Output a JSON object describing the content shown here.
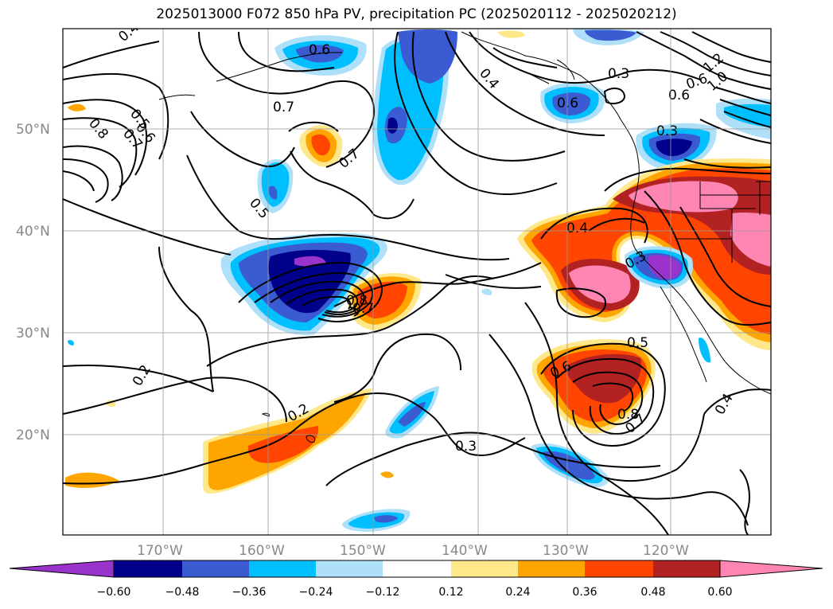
{
  "title": "2025013000 F072 850 hPa PV, precipitation PC (2025020112 - 2025020212)",
  "map": {
    "lat_labels": [
      "50°N",
      "40°N",
      "30°N",
      "20°N"
    ],
    "lon_labels": [
      "170°W",
      "160°W",
      "150°W",
      "140°W",
      "130°W",
      "120°W"
    ],
    "contour_labels": [
      "0.4",
      "0.6",
      "0.5",
      "0.6",
      "0.8",
      "0.7",
      "0.7",
      "0.7",
      "0.5",
      "0.4",
      "0.3",
      "0.6",
      "0.8",
      "0.3",
      "0.4",
      "0.6",
      "1.2",
      "1.0",
      "0.6",
      "0.7",
      "0.3",
      "0.2",
      "0.2",
      "0.3",
      "0.5",
      "0.6",
      "0.8",
      "0.7",
      "0.4"
    ]
  },
  "colorbar": {
    "ticks": [
      "−0.60",
      "−0.48",
      "−0.36",
      "−0.24",
      "−0.12",
      "0.12",
      "0.24",
      "0.36",
      "0.48",
      "0.60"
    ],
    "colors": [
      "#9933cc",
      "#00008b",
      "#3a5bd1",
      "#00bfff",
      "#afe0fa",
      "#ffffff",
      "#ffe88a",
      "#ffa500",
      "#ff4500",
      "#b22222",
      "#ff85b3"
    ]
  }
}
